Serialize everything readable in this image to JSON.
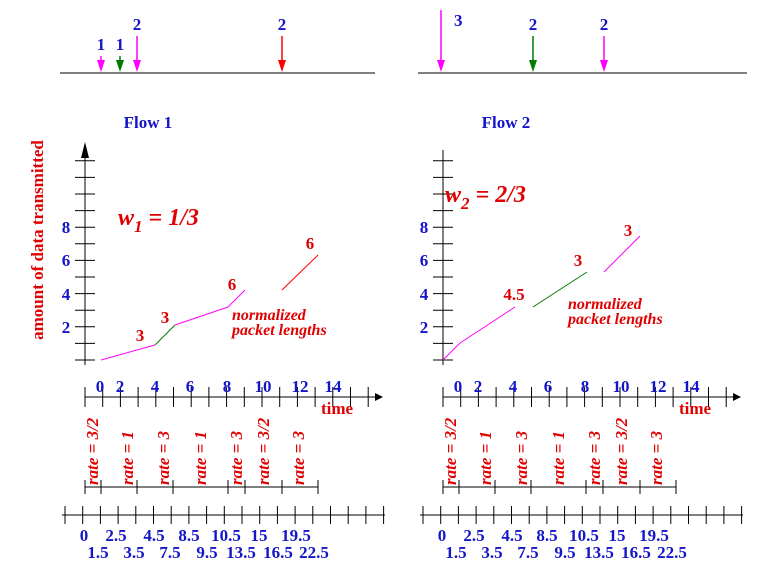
{
  "y_axis_label": "amount of data transmitted",
  "panels": [
    {
      "title": "Flow 1",
      "weight": {
        "symbol": "w",
        "subscript": "1",
        "rest": "= 1/3"
      },
      "arrivals": [
        "1",
        "1",
        "2",
        "2"
      ],
      "y_ticks": [
        "2",
        "4",
        "6",
        "8"
      ],
      "x_ticks": [
        "0",
        "2",
        "4",
        "6",
        "8",
        "10",
        "12",
        "14"
      ],
      "x_label": "time",
      "segment_labels": [
        "3",
        "3",
        "6",
        "6"
      ],
      "note": [
        "normalized",
        "packet lengths"
      ],
      "rates": [
        "rate = 3/2",
        "rate = 1",
        "rate = 3",
        "rate = 1",
        "rate = 3",
        "rate = 3/2",
        "rate = 3"
      ],
      "schedule_top": [
        "0",
        "2.5",
        "4.5",
        "8.5",
        "10.5",
        "15",
        "19.5"
      ],
      "schedule_bottom": [
        "1.5",
        "3.5",
        "7.5",
        "9.5",
        "13.5",
        "16.5",
        "22.5"
      ]
    },
    {
      "title": "Flow 2",
      "weight": {
        "symbol": "w",
        "subscript": "2",
        "rest": "= 2/3"
      },
      "arrivals": [
        "3",
        "2",
        "2"
      ],
      "y_ticks": [
        "2",
        "4",
        "6",
        "8"
      ],
      "x_ticks": [
        "0",
        "2",
        "4",
        "6",
        "8",
        "10",
        "12",
        "14"
      ],
      "x_label": "time",
      "segment_labels": [
        "4.5",
        "3",
        "3"
      ],
      "note": [
        "normalized",
        "packet lengths"
      ],
      "rates": [
        "rate = 3/2",
        "rate = 1",
        "rate = 3",
        "rate = 1",
        "rate = 3",
        "rate = 3/2",
        "rate = 3"
      ],
      "schedule_top": [
        "0",
        "2.5",
        "4.5",
        "8.5",
        "10.5",
        "15",
        "19.5"
      ],
      "schedule_bottom": [
        "1.5",
        "3.5",
        "7.5",
        "9.5",
        "13.5",
        "16.5",
        "22.5"
      ]
    }
  ]
}
